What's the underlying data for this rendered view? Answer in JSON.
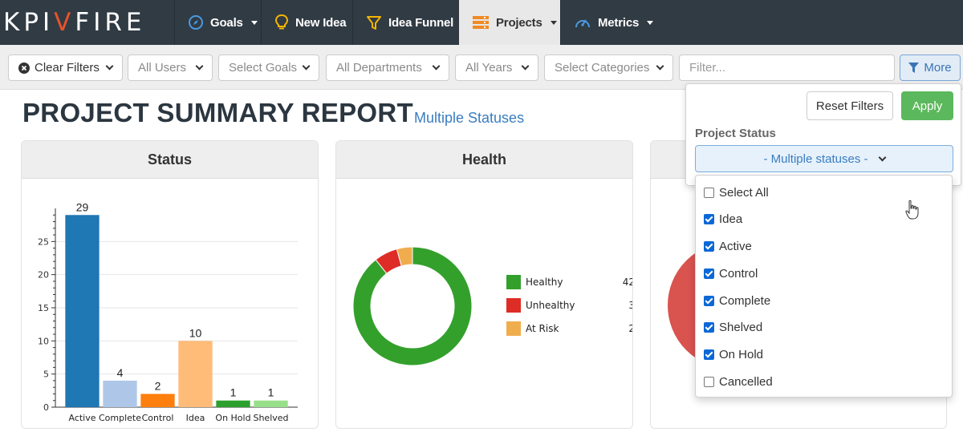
{
  "brand": {
    "logo_text": "KPIFIRE",
    "accent": "#e8532b"
  },
  "nav": {
    "items": [
      {
        "label": "Goals",
        "icon": "compass-icon",
        "has_caret": true
      },
      {
        "label": "New Idea",
        "icon": "lightbulb-icon",
        "has_caret": false
      },
      {
        "label": "Idea Funnel",
        "icon": "funnel-icon",
        "has_caret": false
      },
      {
        "label": "Projects",
        "icon": "projects-icon",
        "has_caret": true,
        "active": true
      },
      {
        "label": "Metrics",
        "icon": "gauge-icon",
        "has_caret": true
      }
    ]
  },
  "filters": {
    "clear": "Clear Filters",
    "users": "All Users",
    "goals": "Select Goals",
    "departments": "All Departments",
    "years": "All Years",
    "categories": "Select Categories",
    "filter_placeholder": "Filter...",
    "more": "More"
  },
  "report": {
    "title": "PROJECT SUMMARY REPORT",
    "subtitle": "Multiple Statuses"
  },
  "panels": {
    "status_title": "Status",
    "health_title": "Health"
  },
  "more_panel": {
    "reset": "Reset Filters",
    "apply": "Apply",
    "status_label": "Project Status",
    "multi_label": "- Multiple statuses -",
    "options": [
      {
        "label": "Select All",
        "checked": false
      },
      {
        "label": "Idea",
        "checked": true
      },
      {
        "label": "Active",
        "checked": true
      },
      {
        "label": "Control",
        "checked": true
      },
      {
        "label": "Complete",
        "checked": true
      },
      {
        "label": "Shelved",
        "checked": true
      },
      {
        "label": "On Hold",
        "checked": true
      },
      {
        "label": "Cancelled",
        "checked": false
      }
    ]
  },
  "chart_data": [
    {
      "type": "bar",
      "title": "Status",
      "categories": [
        "Active",
        "Complete",
        "Control",
        "Idea",
        "On Hold",
        "Shelved"
      ],
      "values": [
        29,
        4,
        2,
        10,
        1,
        1
      ],
      "colors": [
        "#1f77b4",
        "#aec7e8",
        "#ff7f0e",
        "#ffbb78",
        "#2ca02c",
        "#98df8a"
      ],
      "ylim": [
        0,
        30
      ],
      "yticks": [
        0,
        5,
        10,
        15,
        20,
        25
      ],
      "grid": true
    },
    {
      "type": "pie",
      "title": "Health",
      "labels": [
        "Healthy",
        "Unhealthy",
        "At Risk"
      ],
      "values": [
        42,
        3,
        2
      ],
      "colors": [
        "#33a02c",
        "#de2d26",
        "#f0ad4e"
      ],
      "donut": true,
      "legend": "right"
    }
  ]
}
